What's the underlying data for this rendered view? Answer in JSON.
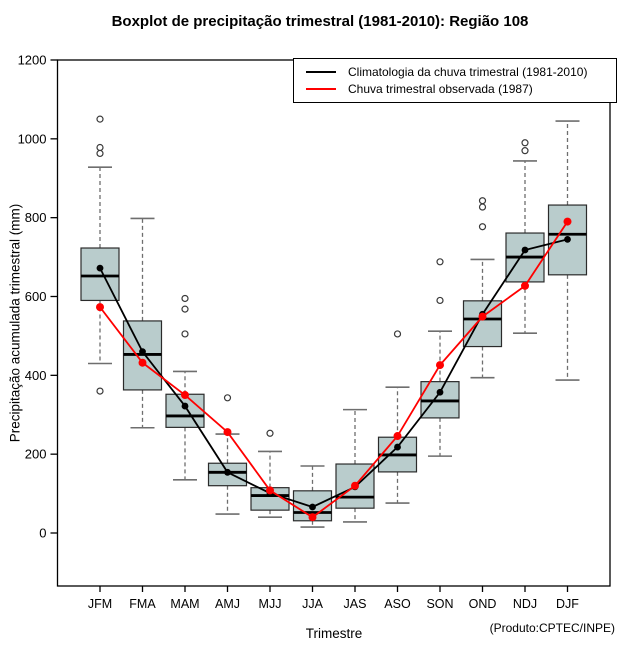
{
  "title": "Boxplot de precipitação trimestral (1981-2010): Região 108",
  "footer_note": "(Produto:CPTEC/INPE)",
  "axes": {
    "x_label": "Trimestre",
    "y_label": "Precipitação acumulada trimestral (mm)",
    "y_ticks": [
      0,
      200,
      400,
      600,
      800,
      1000,
      1200
    ],
    "ylim": [
      0,
      1200
    ]
  },
  "legend": {
    "items": [
      {
        "label": "Climatologia da chuva trimestral (1981-2010)",
        "color": "#000000"
      },
      {
        "label": "Chuva trimestral observada (1987)",
        "color": "#ff0000"
      }
    ]
  },
  "colors": {
    "box_fill": "#b9cccc",
    "box_stroke": "#2b2b2b",
    "whisker": "#6e6e6e",
    "median": "#000000",
    "outlier": "#3a3a3a",
    "climatology": "#000000",
    "observed": "#ff0000"
  },
  "chart_data": {
    "type": "boxplot",
    "title": "Boxplot de precipitação trimestral (1981-2010): Região 108",
    "xlabel": "Trimestre",
    "ylabel": "Precipitação acumulada trimestral (mm)",
    "ylim": [
      0,
      1200
    ],
    "grid": false,
    "legend_position": "top-right",
    "categories": [
      "JFM",
      "FMA",
      "MAM",
      "AMJ",
      "MJJ",
      "JJA",
      "JAS",
      "ASO",
      "SON",
      "OND",
      "NDJ",
      "DJF"
    ],
    "boxes": [
      {
        "category": "JFM",
        "low": 430,
        "q1": 590,
        "median": 652,
        "q3": 723,
        "high": 928,
        "outliers": [
          360,
          963,
          978,
          1050
        ]
      },
      {
        "category": "FMA",
        "low": 267,
        "q1": 363,
        "median": 453,
        "q3": 538,
        "high": 798,
        "outliers": []
      },
      {
        "category": "MAM",
        "low": 135,
        "q1": 268,
        "median": 297,
        "q3": 352,
        "high": 410,
        "outliers": [
          505,
          568,
          595
        ]
      },
      {
        "category": "AMJ",
        "low": 48,
        "q1": 120,
        "median": 154,
        "q3": 177,
        "high": 251,
        "outliers": [
          343
        ]
      },
      {
        "category": "MJJ",
        "low": 40,
        "q1": 58,
        "median": 95,
        "q3": 115,
        "high": 207,
        "outliers": [
          253
        ]
      },
      {
        "category": "JJA",
        "low": 15,
        "q1": 31,
        "median": 52,
        "q3": 107,
        "high": 170,
        "outliers": []
      },
      {
        "category": "JAS",
        "low": 28,
        "q1": 63,
        "median": 91,
        "q3": 175,
        "high": 313,
        "outliers": []
      },
      {
        "category": "ASO",
        "low": 76,
        "q1": 155,
        "median": 198,
        "q3": 243,
        "high": 370,
        "outliers": [
          505
        ]
      },
      {
        "category": "SON",
        "low": 195,
        "q1": 292,
        "median": 335,
        "q3": 384,
        "high": 512,
        "outliers": [
          590,
          688
        ]
      },
      {
        "category": "OND",
        "low": 394,
        "q1": 473,
        "median": 543,
        "q3": 589,
        "high": 694,
        "outliers": [
          777,
          827,
          843
        ]
      },
      {
        "category": "NDJ",
        "low": 507,
        "q1": 637,
        "median": 700,
        "q3": 761,
        "high": 944,
        "outliers": [
          970,
          990
        ]
      },
      {
        "category": "DJF",
        "low": 388,
        "q1": 655,
        "median": 758,
        "q3": 832,
        "high": 1045,
        "outliers": []
      }
    ],
    "series": [
      {
        "name": "Climatologia da chuva trimestral (1981-2010)",
        "color": "#000000",
        "values": [
          672,
          460,
          322,
          154,
          101,
          66,
          117,
          218,
          357,
          555,
          718,
          745
        ]
      },
      {
        "name": "Chuva trimestral observada (1987)",
        "color": "#ff0000",
        "values": [
          573,
          432,
          350,
          256,
          108,
          40,
          120,
          246,
          426,
          549,
          627,
          790
        ]
      }
    ]
  }
}
